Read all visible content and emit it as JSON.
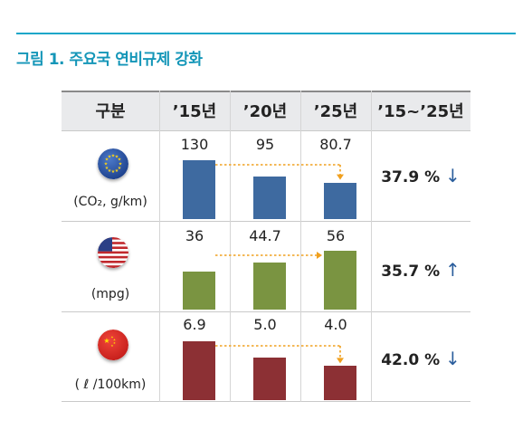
{
  "figure_title": "그림 1. 주요국 연비규제 강화",
  "table": {
    "headers": [
      "구분",
      "’15년",
      "’20년",
      "’25년",
      "’15~’25년"
    ]
  },
  "chart_data": {
    "type": "bar",
    "title": "그림 1. 주요국 연비규제 강화",
    "categories": [
      "’15년",
      "’20년",
      "’25년"
    ],
    "series": [
      {
        "region": "EU",
        "unit": "(CO₂, g/km)",
        "values": [
          130,
          95,
          80.7
        ],
        "labels": [
          "130",
          "95",
          "80.7"
        ],
        "change": "37.9 %",
        "arrow": "↓",
        "color": "#3e6aa0"
      },
      {
        "region": "US",
        "unit": "(mpg)",
        "values": [
          36,
          44.7,
          56
        ],
        "labels": [
          "36",
          "44.7",
          "56"
        ],
        "change": "35.7 %",
        "arrow": "↑",
        "color": "#7a9441"
      },
      {
        "region": "China",
        "unit": "( ℓ /100km)",
        "values": [
          6.9,
          5.0,
          4.0
        ],
        "labels": [
          "6.9",
          "5.0",
          "4.0"
        ],
        "change": "42.0 %",
        "arrow": "↓",
        "color": "#8c3034"
      }
    ],
    "connector_color": "#f0a01e"
  }
}
